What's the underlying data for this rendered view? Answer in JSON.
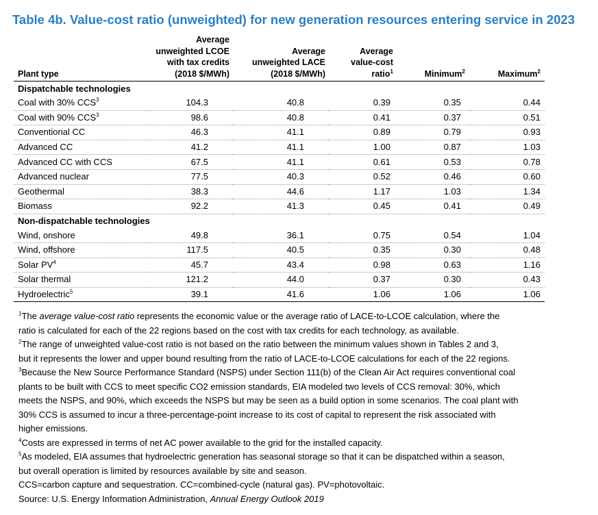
{
  "title": "Table 4b. Value-cost ratio (unweighted) for new generation resources entering service in 2023",
  "headers": {
    "plant_type": "Plant type",
    "lcoe": [
      "Average",
      "unweighted LCOE",
      "with tax credits",
      "(2018 $/MWh)"
    ],
    "lace": [
      "Average",
      "unweighted LACE",
      "(2018 $/MWh)"
    ],
    "vcr": [
      "Average",
      "value-cost",
      "ratio"
    ],
    "vcr_sup": "1",
    "minimum": "Minimum",
    "minimum_sup": "2",
    "maximum": "Maximum",
    "maximum_sup": "2"
  },
  "sections": [
    {
      "label": "Dispatchable technologies",
      "rows": [
        {
          "name": "Coal with 30% CCS",
          "sup": "3",
          "lcoe": "104.3",
          "lace": "40.8",
          "ratio": "0.39",
          "min": "0.35",
          "max": "0.44"
        },
        {
          "name": "Coal with 90% CCS",
          "sup": "3",
          "lcoe": "98.6",
          "lace": "40.8",
          "ratio": "0.41",
          "min": "0.37",
          "max": "0.51"
        },
        {
          "name": "Conventional CC",
          "sup": "",
          "lcoe": "46.3",
          "lace": "41.1",
          "ratio": "0.89",
          "min": "0.79",
          "max": "0.93"
        },
        {
          "name": "Advanced CC",
          "sup": "",
          "lcoe": "41.2",
          "lace": "41.1",
          "ratio": "1.00",
          "min": "0.87",
          "max": "1.03"
        },
        {
          "name": "Advanced CC with CCS",
          "sup": "",
          "lcoe": "67.5",
          "lace": "41.1",
          "ratio": "0.61",
          "min": "0.53",
          "max": "0.78"
        },
        {
          "name": "Advanced nuclear",
          "sup": "",
          "lcoe": "77.5",
          "lace": "40.3",
          "ratio": "0.52",
          "min": "0.46",
          "max": "0.60"
        },
        {
          "name": "Geothermal",
          "sup": "",
          "lcoe": "38.3",
          "lace": "44.6",
          "ratio": "1.17",
          "min": "1.03",
          "max": "1.34"
        },
        {
          "name": "Biomass",
          "sup": "",
          "lcoe": "92.2",
          "lace": "41.3",
          "ratio": "0.45",
          "min": "0.41",
          "max": "0.49"
        }
      ]
    },
    {
      "label": "Non-dispatchable technologies",
      "rows": [
        {
          "name": "Wind, onshore",
          "sup": "",
          "lcoe": "49.8",
          "lace": "36.1",
          "ratio": "0.75",
          "min": "0.54",
          "max": "1.04"
        },
        {
          "name": "Wind, offshore",
          "sup": "",
          "lcoe": "117.5",
          "lace": "40.5",
          "ratio": "0.35",
          "min": "0.30",
          "max": "0.48"
        },
        {
          "name": "Solar PV",
          "sup": "4",
          "lcoe": "45.7",
          "lace": "43.4",
          "ratio": "0.98",
          "min": "0.63",
          "max": "1.16"
        },
        {
          "name": "Solar thermal",
          "sup": "",
          "lcoe": "121.2",
          "lace": "44.0",
          "ratio": "0.37",
          "min": "0.30",
          "max": "0.43"
        },
        {
          "name": "Hydroelectric",
          "sup": "5",
          "lcoe": "39.1",
          "lace": "41.6",
          "ratio": "1.06",
          "min": "1.06",
          "max": "1.06"
        }
      ]
    }
  ],
  "footnotes": {
    "fn1_sup": "1",
    "fn1_a": "The ",
    "fn1_italic": "average value-cost ratio",
    "fn1_b": " represents the economic value or the average ratio of LACE-to-LCOE calculation, where the",
    "fn1_c": "ratio is calculated for each of the 22 regions based on the cost with tax credits for each technology, as available.",
    "fn2_sup": "2",
    "fn2_a": "The range of unweighted value-cost ratio is not based on the ratio between the minimum values shown in Tables 2 and 3,",
    "fn2_b": "but it represents the lower and upper bound resulting from the ratio of LACE-to-LCOE calculations for each of the 22 regions.",
    "fn3_sup": "3",
    "fn3_a": "Because the New Source Performance Standard (NSPS) under Section 111(b) of the Clean Air Act requires conventional coal",
    "fn3_b": "plants to be built with CCS to meet specific CO2 emission standards, EIA modeled two levels of CCS removal: 30%, which",
    "fn3_c": "meets the NSPS, and 90%, which exceeds the NSPS but may be seen as a build option in some scenarios. The coal plant with",
    "fn3_d": "30% CCS is assumed to incur a three-percentage-point increase to its cost of capital to represent the risk associated with",
    "fn3_e": "higher emissions.",
    "fn4_sup": "4",
    "fn4_a": "Costs are expressed in terms of net AC power available to the grid for the installed capacity.",
    "fn5_sup": "5",
    "fn5_a": "As modeled, EIA assumes that hydroelectric generation has seasonal storage so that it can be dispatched within a season,",
    "fn5_b": "but overall operation is limited by resources available by site and season.",
    "abbrev": "CCS=carbon capture and sequestration. CC=combined-cycle (natural gas). PV=photovoltaic.",
    "source_label": "Source:  U.S. Energy Information Administration, ",
    "source_italic": "Annual Energy Outlook 2019"
  }
}
